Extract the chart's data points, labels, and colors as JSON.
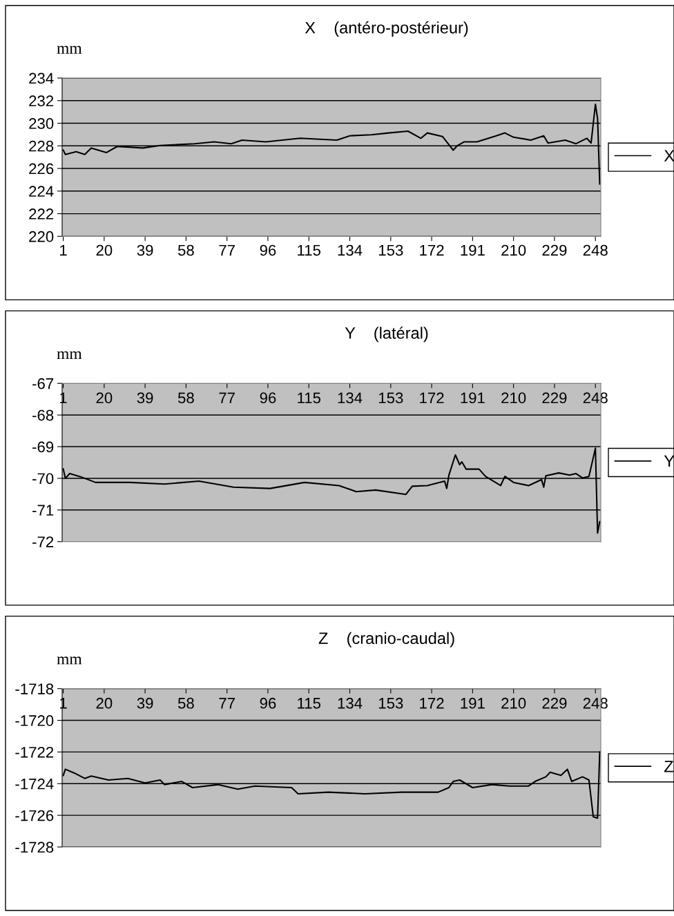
{
  "chart_data": [
    {
      "type": "line",
      "title": "X    (antéro-postérieur)",
      "ylabel": "mm",
      "legend": "right",
      "grid": "y",
      "xlim": [
        0.5,
        250.5
      ],
      "xticks": [
        1,
        20,
        39,
        58,
        77,
        96,
        115,
        134,
        153,
        172,
        191,
        210,
        229,
        248
      ],
      "ylim": [
        220,
        234
      ],
      "yticks": [
        220,
        222,
        224,
        226,
        228,
        230,
        232,
        234
      ],
      "series": [
        {
          "name": "X",
          "color": "#000000",
          "x": [
            1,
            2,
            7,
            11,
            14,
            21,
            26,
            38,
            46,
            62,
            71,
            79,
            84,
            95,
            111,
            128,
            134,
            144,
            152,
            161,
            167,
            170,
            177,
            179,
            182,
            184,
            187,
            193,
            202,
            206,
            210,
            218,
            224,
            226,
            234,
            239,
            244,
            246,
            248,
            249,
            250
          ],
          "values": [
            227.62,
            227.24,
            227.49,
            227.24,
            227.81,
            227.4,
            227.94,
            227.81,
            228.03,
            228.19,
            228.35,
            228.19,
            228.51,
            228.35,
            228.67,
            228.51,
            228.89,
            228.98,
            229.14,
            229.3,
            228.67,
            229.14,
            228.83,
            228.35,
            227.62,
            228.03,
            228.35,
            228.35,
            228.89,
            229.14,
            228.76,
            228.51,
            228.89,
            228.25,
            228.51,
            228.19,
            228.67,
            228.25,
            231.68,
            230.41,
            224.63
          ]
        }
      ]
    },
    {
      "type": "line",
      "title": "Y    (latéral)",
      "ylabel": "mm",
      "legend": "right",
      "grid": "y",
      "xlim": [
        0.5,
        250.5
      ],
      "xticks": [
        1,
        20,
        39,
        58,
        77,
        96,
        115,
        134,
        153,
        172,
        191,
        210,
        229,
        248
      ],
      "ylim": [
        -72,
        -67
      ],
      "yticks": [
        -72,
        -71,
        -70,
        -69,
        -68,
        -67
      ],
      "series": [
        {
          "name": "Y",
          "color": "#000000",
          "x": [
            1,
            2,
            4,
            9,
            16,
            32,
            48,
            64,
            80,
            97,
            113,
            129,
            137,
            146,
            160,
            163,
            170,
            178,
            179,
            180,
            183,
            185,
            186,
            188,
            194,
            197,
            204,
            206,
            210,
            217,
            223,
            224,
            225,
            231,
            236,
            239,
            242,
            245,
            248,
            249,
            250
          ],
          "values": [
            -69.7,
            -70.0,
            -69.85,
            -69.95,
            -70.13,
            -70.13,
            -70.18,
            -70.09,
            -70.28,
            -70.32,
            -70.13,
            -70.23,
            -70.42,
            -70.37,
            -70.51,
            -70.25,
            -70.23,
            -70.09,
            -70.32,
            -69.9,
            -69.26,
            -69.57,
            -69.48,
            -69.71,
            -69.71,
            -69.94,
            -70.23,
            -69.94,
            -70.13,
            -70.23,
            -70.04,
            -70.28,
            -69.92,
            -69.83,
            -69.9,
            -69.85,
            -69.99,
            -69.94,
            -69.05,
            -71.73,
            -71.37
          ]
        }
      ]
    },
    {
      "type": "line",
      "title": "Z    (cranio-caudal)",
      "ylabel": "mm",
      "legend": "right",
      "grid": "y",
      "xlim": [
        0.5,
        250.5
      ],
      "xticks": [
        1,
        20,
        39,
        58,
        77,
        96,
        115,
        134,
        153,
        172,
        191,
        210,
        229,
        248
      ],
      "ylim": [
        -1728,
        -1718
      ],
      "yticks": [
        -1728,
        -1726,
        -1724,
        -1722,
        -1720,
        -1718
      ],
      "series": [
        {
          "name": "Z",
          "color": "#000000",
          "x": [
            1,
            2,
            6,
            11,
            14,
            22,
            31,
            39,
            46,
            48,
            56,
            61,
            73,
            82,
            90,
            107,
            110,
            124,
            141,
            158,
            175,
            180,
            182,
            185,
            191,
            200,
            208,
            217,
            220,
            225,
            227,
            232,
            235,
            237,
            242,
            245,
            247,
            249,
            250
          ],
          "values": [
            -1723.48,
            -1723.09,
            -1723.32,
            -1723.67,
            -1723.52,
            -1723.77,
            -1723.67,
            -1723.96,
            -1723.77,
            -1724.06,
            -1723.86,
            -1724.25,
            -1724.06,
            -1724.35,
            -1724.15,
            -1724.25,
            -1724.64,
            -1724.54,
            -1724.64,
            -1724.54,
            -1724.54,
            -1724.25,
            -1723.86,
            -1723.77,
            -1724.25,
            -1724.06,
            -1724.15,
            -1724.15,
            -1723.86,
            -1723.57,
            -1723.28,
            -1723.48,
            -1723.09,
            -1723.86,
            -1723.57,
            -1723.77,
            -1726.09,
            -1726.18,
            -1722.0
          ]
        }
      ]
    }
  ]
}
